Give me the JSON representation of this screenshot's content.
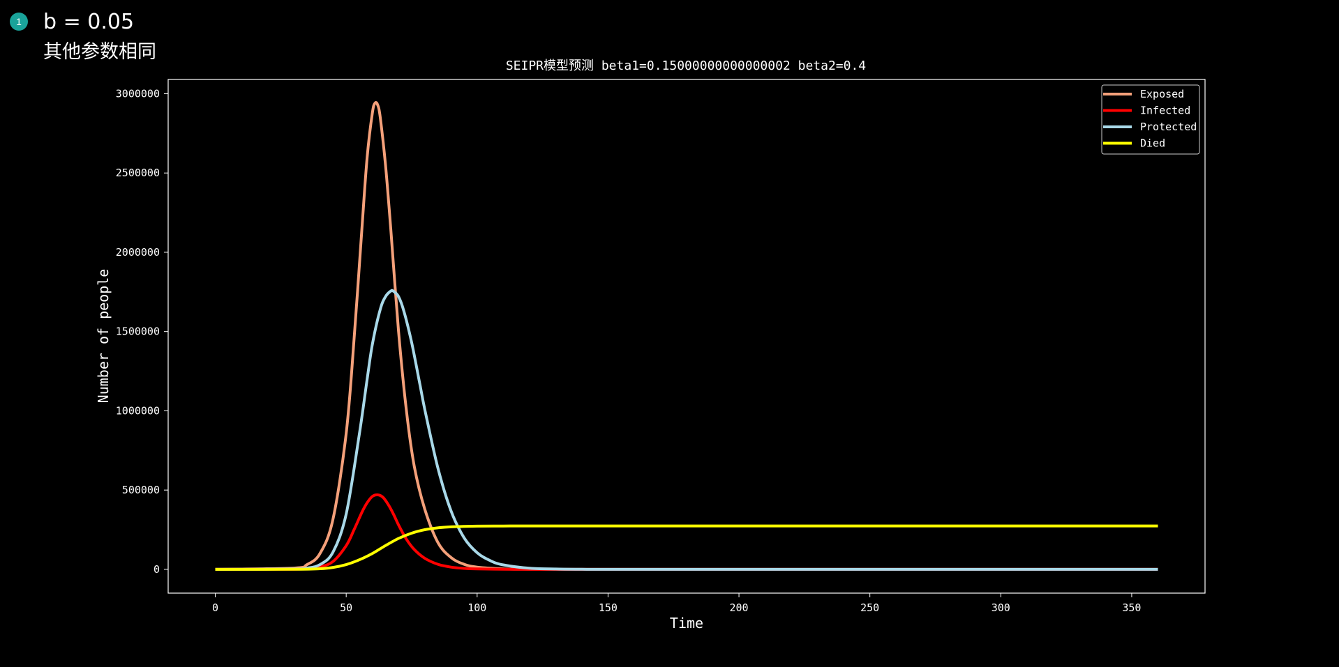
{
  "note": {
    "badge": "1",
    "line1": "b = 0.05",
    "line2": "其他参数相同"
  },
  "chart_data": {
    "type": "line",
    "title": "SEIPR模型预测 beta1=0.15000000000000002 beta2=0.4",
    "xlabel": "Time",
    "ylabel": "Number of people",
    "xlim": [
      -18,
      378
    ],
    "ylim": [
      -150000,
      3090000
    ],
    "xticks": [
      0,
      50,
      100,
      150,
      200,
      250,
      300,
      350
    ],
    "yticks": [
      0,
      500000,
      1000000,
      1500000,
      2000000,
      2500000,
      3000000
    ],
    "grid": false,
    "legend_position": "top-right",
    "background": "#000000",
    "axes_color": "#ffffff",
    "series": [
      {
        "name": "Exposed",
        "color": "#f4a07a",
        "x": [
          0,
          30,
          35,
          40,
          45,
          50,
          53,
          56,
          58,
          60,
          61,
          62,
          63,
          65,
          67,
          70,
          73,
          76,
          80,
          85,
          90,
          95,
          100,
          110,
          120,
          130,
          150,
          200,
          250,
          300,
          360
        ],
        "y": [
          0,
          8000,
          30000,
          100000,
          320000,
          860000,
          1450000,
          2150000,
          2600000,
          2880000,
          2940000,
          2930000,
          2850000,
          2550000,
          2150000,
          1500000,
          1000000,
          650000,
          380000,
          170000,
          75000,
          32000,
          14000,
          3000,
          700,
          200,
          0,
          0,
          0,
          0,
          0
        ]
      },
      {
        "name": "Infected",
        "color": "#ff0000",
        "x": [
          0,
          30,
          35,
          40,
          45,
          50,
          53,
          56,
          58,
          60,
          62,
          64,
          66,
          68,
          70,
          73,
          76,
          80,
          85,
          90,
          95,
          100,
          110,
          120,
          130,
          150,
          200,
          250,
          300,
          360
        ],
        "y": [
          0,
          1000,
          4000,
          15000,
          50000,
          150000,
          250000,
          360000,
          420000,
          460000,
          470000,
          455000,
          410000,
          350000,
          280000,
          190000,
          125000,
          70000,
          32000,
          14000,
          6000,
          2500,
          500,
          100,
          0,
          0,
          0,
          0,
          0,
          0
        ]
      },
      {
        "name": "Protected",
        "color": "#a8d8e8",
        "x": [
          0,
          30,
          35,
          40,
          45,
          50,
          55,
          58,
          60,
          63,
          65,
          67,
          68,
          70,
          72,
          75,
          78,
          80,
          85,
          90,
          95,
          100,
          105,
          110,
          120,
          130,
          140,
          150,
          200,
          250,
          300,
          360
        ],
        "y": [
          0,
          2000,
          8000,
          30000,
          110000,
          350000,
          850000,
          1200000,
          1420000,
          1640000,
          1720000,
          1755000,
          1755000,
          1720000,
          1630000,
          1430000,
          1180000,
          1010000,
          640000,
          370000,
          200000,
          105000,
          55000,
          28000,
          7000,
          2000,
          500,
          0,
          0,
          0,
          0,
          0
        ]
      },
      {
        "name": "Died",
        "color": "#ffff00",
        "x": [
          0,
          30,
          40,
          45,
          50,
          55,
          60,
          65,
          70,
          75,
          80,
          85,
          90,
          95,
          100,
          110,
          120,
          150,
          200,
          250,
          300,
          360
        ],
        "y": [
          0,
          500,
          4000,
          12000,
          30000,
          60000,
          100000,
          150000,
          195000,
          228000,
          250000,
          262000,
          268000,
          271000,
          272500,
          273500,
          274000,
          274000,
          274000,
          274000,
          274000,
          274000
        ]
      }
    ]
  }
}
